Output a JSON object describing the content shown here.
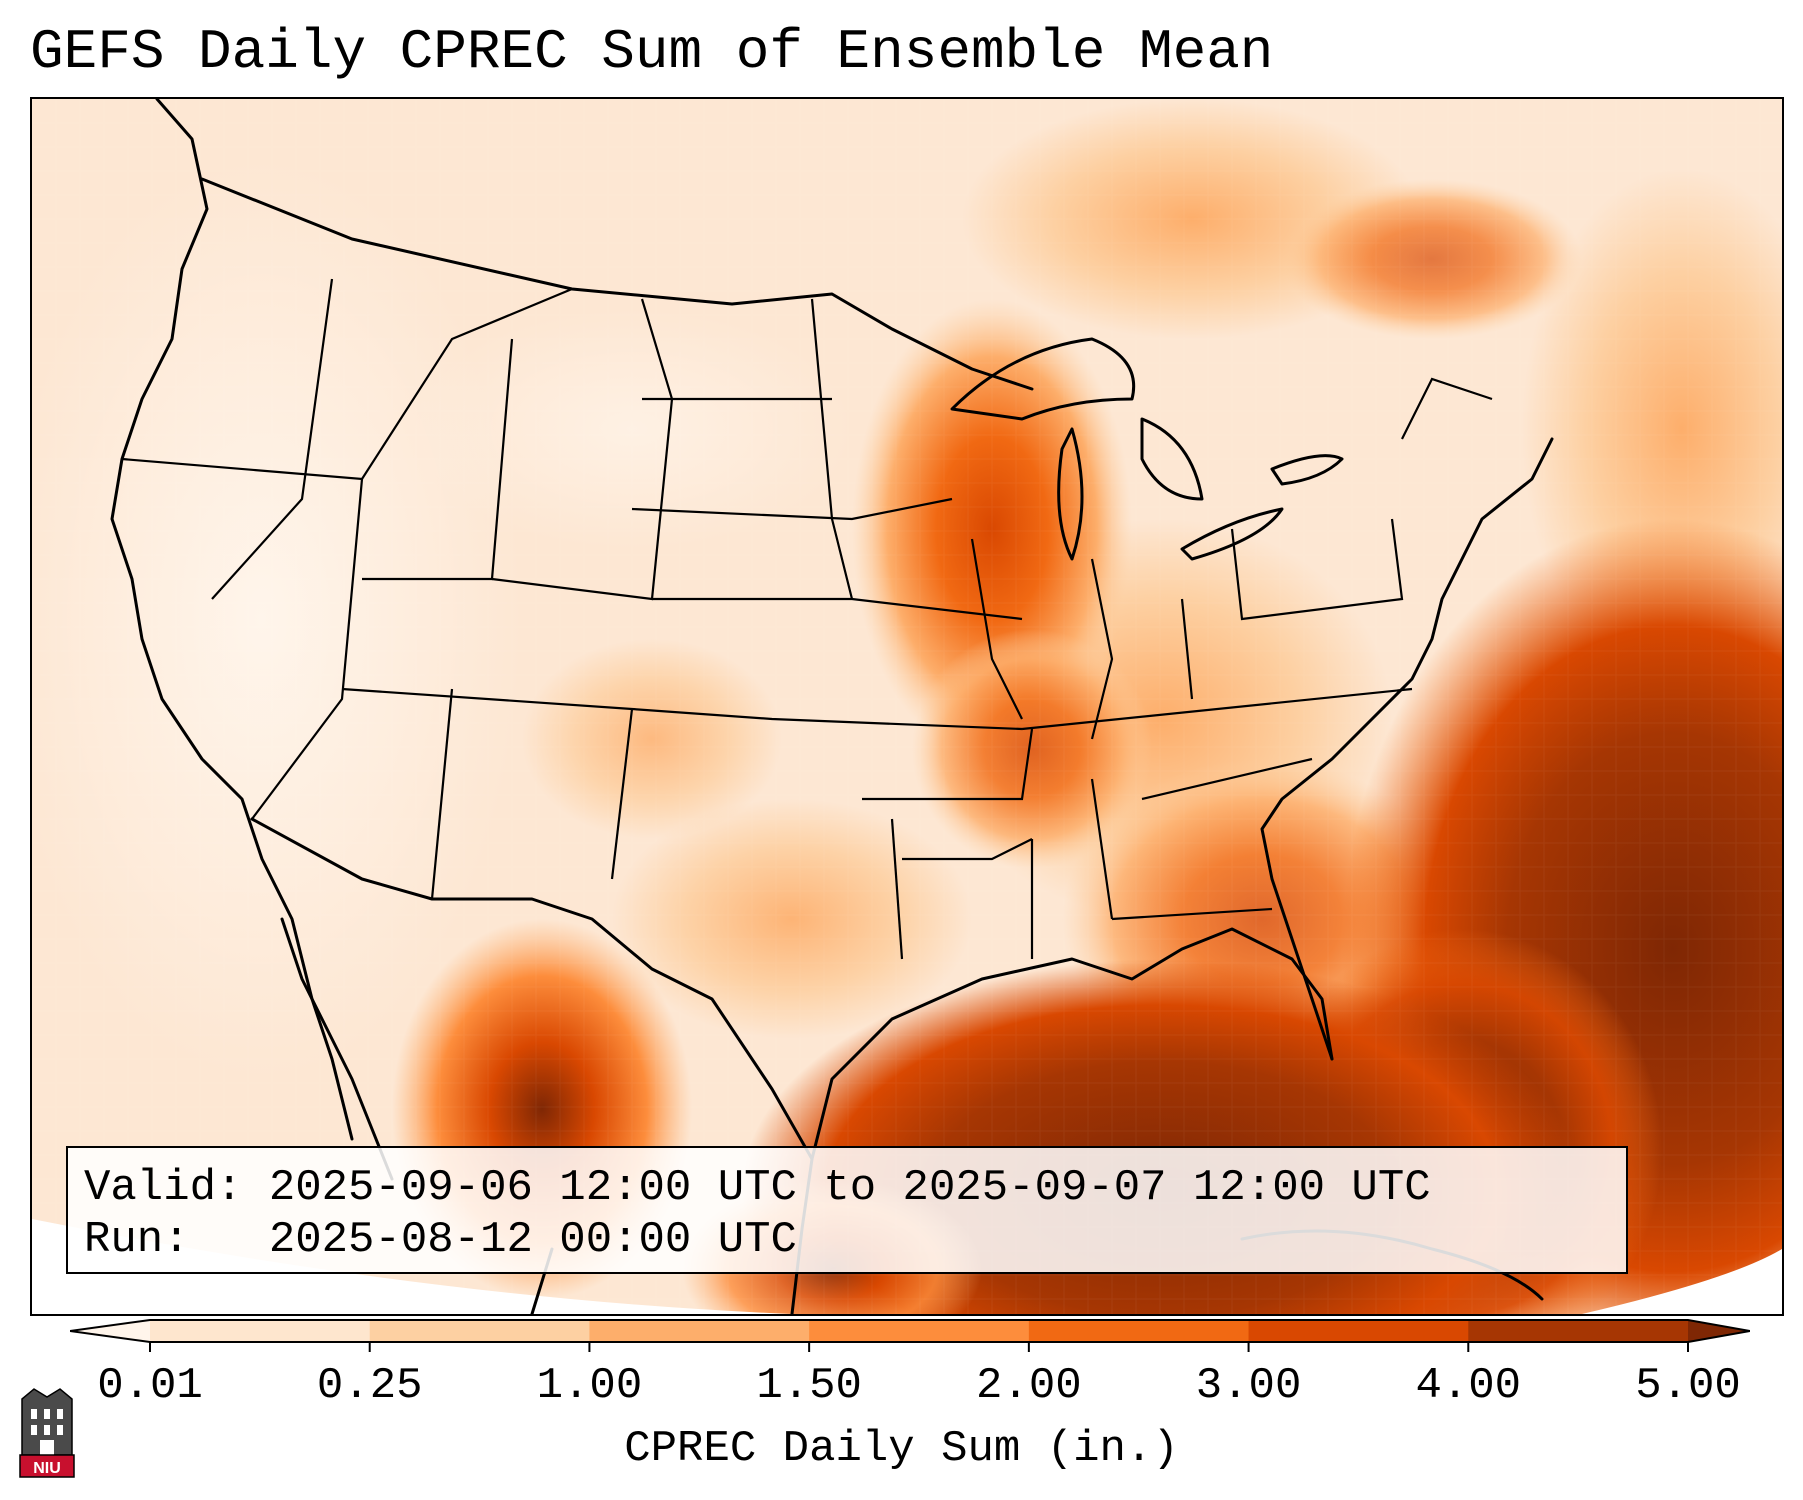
{
  "title": "GEFS Daily CPREC Sum of Ensemble Mean",
  "info": {
    "valid_label": "Valid:",
    "valid_value": "2025-09-06 12:00 UTC to 2025-09-07 12:00 UTC",
    "run_label": "Run:",
    "run_value": "2025-08-12 00:00 UTC"
  },
  "colorbar": {
    "title": "CPREC Daily Sum (in.)",
    "ticks": [
      "0.01",
      "0.25",
      "1.00",
      "1.50",
      "2.00",
      "3.00",
      "4.00",
      "5.00"
    ],
    "colors": [
      "#fee6ce",
      "#fdd0a2",
      "#fdae6b",
      "#fd8d3c",
      "#f16913",
      "#d94801",
      "#a63603",
      "#7f2704"
    ],
    "under_color": "#fff5eb",
    "over_color": "#7f2704",
    "extend": "both"
  },
  "map": {
    "region": "Contiguous United States, northern Mexico, Gulf of Mexico, western Atlantic",
    "projection": "Lambert Conformal",
    "heaviest_precip_areas": [
      "Gulf of Mexico",
      "Western Atlantic off Southeast US coast",
      "Northern Mexico (Sierra Madre Occidental)"
    ],
    "moderate_precip_areas": [
      "Upper Midwest (Minnesota / Iowa)",
      "Florida Peninsula",
      "Carolinas"
    ]
  },
  "logo": {
    "text": "NIU"
  }
}
